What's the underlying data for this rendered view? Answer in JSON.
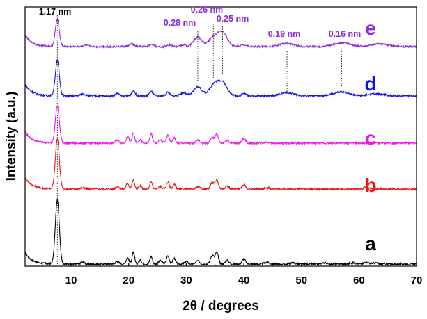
{
  "chart_data": {
    "type": "line",
    "title": "",
    "xlabel": "2θ / degrees",
    "ylabel": "Intensity (a.u.)",
    "xlim": [
      2,
      70
    ],
    "xticks": [
      10,
      20,
      30,
      40,
      50,
      60,
      70
    ],
    "yticks_shown": false,
    "grid": false,
    "series": [
      {
        "name": "a",
        "color": "#000000",
        "baseline": 0.0,
        "noise": 0.014,
        "peaks": [
          [
            7.6,
            1.0,
            0.35
          ],
          [
            12.0,
            0.03,
            0.3
          ],
          [
            18.0,
            0.04,
            0.3
          ],
          [
            19.8,
            0.1,
            0.25
          ],
          [
            20.8,
            0.18,
            0.22
          ],
          [
            22.0,
            0.06,
            0.25
          ],
          [
            23.9,
            0.12,
            0.22
          ],
          [
            25.5,
            0.05,
            0.3
          ],
          [
            26.8,
            0.13,
            0.25
          ],
          [
            27.9,
            0.09,
            0.25
          ],
          [
            30.0,
            0.04,
            0.3
          ],
          [
            32.0,
            0.05,
            0.3
          ],
          [
            34.5,
            0.14,
            0.3
          ],
          [
            35.3,
            0.18,
            0.28
          ],
          [
            37.1,
            0.06,
            0.3
          ],
          [
            40.0,
            0.08,
            0.3
          ],
          [
            44.0,
            0.03,
            0.4
          ],
          [
            48.5,
            0.02,
            0.4
          ],
          [
            54.0,
            0.02,
            0.4
          ],
          [
            59.0,
            0.02,
            0.5
          ],
          [
            61.3,
            0.03,
            0.4
          ],
          [
            62.8,
            0.02,
            0.4
          ]
        ]
      },
      {
        "name": "b",
        "color": "#ee1111",
        "baseline": 0.0,
        "noise": 0.014,
        "peaks": [
          [
            7.6,
            0.78,
            0.35
          ],
          [
            12.0,
            0.02,
            0.3
          ],
          [
            18.0,
            0.04,
            0.3
          ],
          [
            19.8,
            0.09,
            0.25
          ],
          [
            20.8,
            0.14,
            0.22
          ],
          [
            22.0,
            0.05,
            0.25
          ],
          [
            23.9,
            0.11,
            0.22
          ],
          [
            25.5,
            0.04,
            0.3
          ],
          [
            26.8,
            0.11,
            0.25
          ],
          [
            27.9,
            0.07,
            0.25
          ],
          [
            32.0,
            0.04,
            0.3
          ],
          [
            34.5,
            0.1,
            0.3
          ],
          [
            35.3,
            0.14,
            0.28
          ],
          [
            37.1,
            0.05,
            0.3
          ],
          [
            40.0,
            0.07,
            0.3
          ],
          [
            44.0,
            0.02,
            0.4
          ],
          [
            61.3,
            0.03,
            0.4
          ]
        ]
      },
      {
        "name": "c",
        "color": "#ee11ee",
        "baseline": 0.0,
        "noise": 0.014,
        "peaks": [
          [
            7.6,
            0.58,
            0.35
          ],
          [
            18.0,
            0.05,
            0.3
          ],
          [
            19.8,
            0.1,
            0.25
          ],
          [
            20.8,
            0.16,
            0.22
          ],
          [
            22.0,
            0.05,
            0.25
          ],
          [
            23.9,
            0.15,
            0.22
          ],
          [
            25.5,
            0.05,
            0.3
          ],
          [
            26.8,
            0.13,
            0.25
          ],
          [
            27.9,
            0.08,
            0.25
          ],
          [
            32.0,
            0.05,
            0.3
          ],
          [
            34.5,
            0.09,
            0.3
          ],
          [
            35.3,
            0.14,
            0.28
          ],
          [
            37.1,
            0.05,
            0.3
          ],
          [
            40.0,
            0.07,
            0.3
          ],
          [
            44.0,
            0.02,
            0.4
          ]
        ]
      },
      {
        "name": "d",
        "color": "#1111ee",
        "baseline": 0.0,
        "noise": 0.014,
        "peaks": [
          [
            7.6,
            0.55,
            0.35
          ],
          [
            12.0,
            0.03,
            0.5
          ],
          [
            18.0,
            0.04,
            0.3
          ],
          [
            20.8,
            0.08,
            0.3
          ],
          [
            23.9,
            0.07,
            0.3
          ],
          [
            26.8,
            0.06,
            0.3
          ],
          [
            29.5,
            0.05,
            0.5
          ],
          [
            32.0,
            0.14,
            0.7
          ],
          [
            34.8,
            0.17,
            0.8
          ],
          [
            36.3,
            0.2,
            0.8
          ],
          [
            40.0,
            0.04,
            0.4
          ],
          [
            47.5,
            0.05,
            1.2
          ],
          [
            57.0,
            0.06,
            1.4
          ],
          [
            63.0,
            0.03,
            1.5
          ]
        ]
      },
      {
        "name": "e",
        "color": "#8c2be2",
        "baseline": 0.0,
        "noise": 0.014,
        "peaks": [
          [
            7.6,
            0.42,
            0.35
          ],
          [
            12.5,
            0.02,
            0.5
          ],
          [
            20.5,
            0.04,
            0.4
          ],
          [
            24.0,
            0.04,
            0.4
          ],
          [
            27.0,
            0.03,
            0.4
          ],
          [
            29.5,
            0.03,
            0.4
          ],
          [
            32.0,
            0.15,
            0.7
          ],
          [
            34.7,
            0.14,
            0.8
          ],
          [
            36.3,
            0.22,
            0.8
          ],
          [
            40.0,
            0.03,
            0.5
          ],
          [
            47.5,
            0.05,
            1.2
          ],
          [
            57.0,
            0.06,
            1.4
          ],
          [
            63.5,
            0.04,
            1.5
          ]
        ]
      }
    ],
    "annotations": [
      {
        "text": "1.17 nm",
        "x": 7.6,
        "target": "e",
        "color": "#000000"
      },
      {
        "text": "0.28 nm",
        "x": 32.0,
        "target": "e",
        "color": "#8c2be2"
      },
      {
        "text": "0.26 nm",
        "x": 34.7,
        "target": "e",
        "color": "#8c2be2"
      },
      {
        "text": "0.25 nm",
        "x": 36.3,
        "target": "e",
        "color": "#8c2be2"
      },
      {
        "text": "0.19 nm",
        "x": 47.5,
        "target": "e",
        "color": "#8c2be2"
      },
      {
        "text": "0.16 nm",
        "x": 57.0,
        "target": "e",
        "color": "#8c2be2"
      }
    ],
    "series_labels": [
      {
        "text": "a",
        "series": "a",
        "color": "#000000"
      },
      {
        "text": "b",
        "series": "b",
        "color": "#ee1111"
      },
      {
        "text": "c",
        "series": "c",
        "color": "#ee11ee"
      },
      {
        "text": "d",
        "series": "d",
        "color": "#1111ee"
      },
      {
        "text": "e",
        "series": "e",
        "color": "#8c2be2"
      }
    ]
  }
}
